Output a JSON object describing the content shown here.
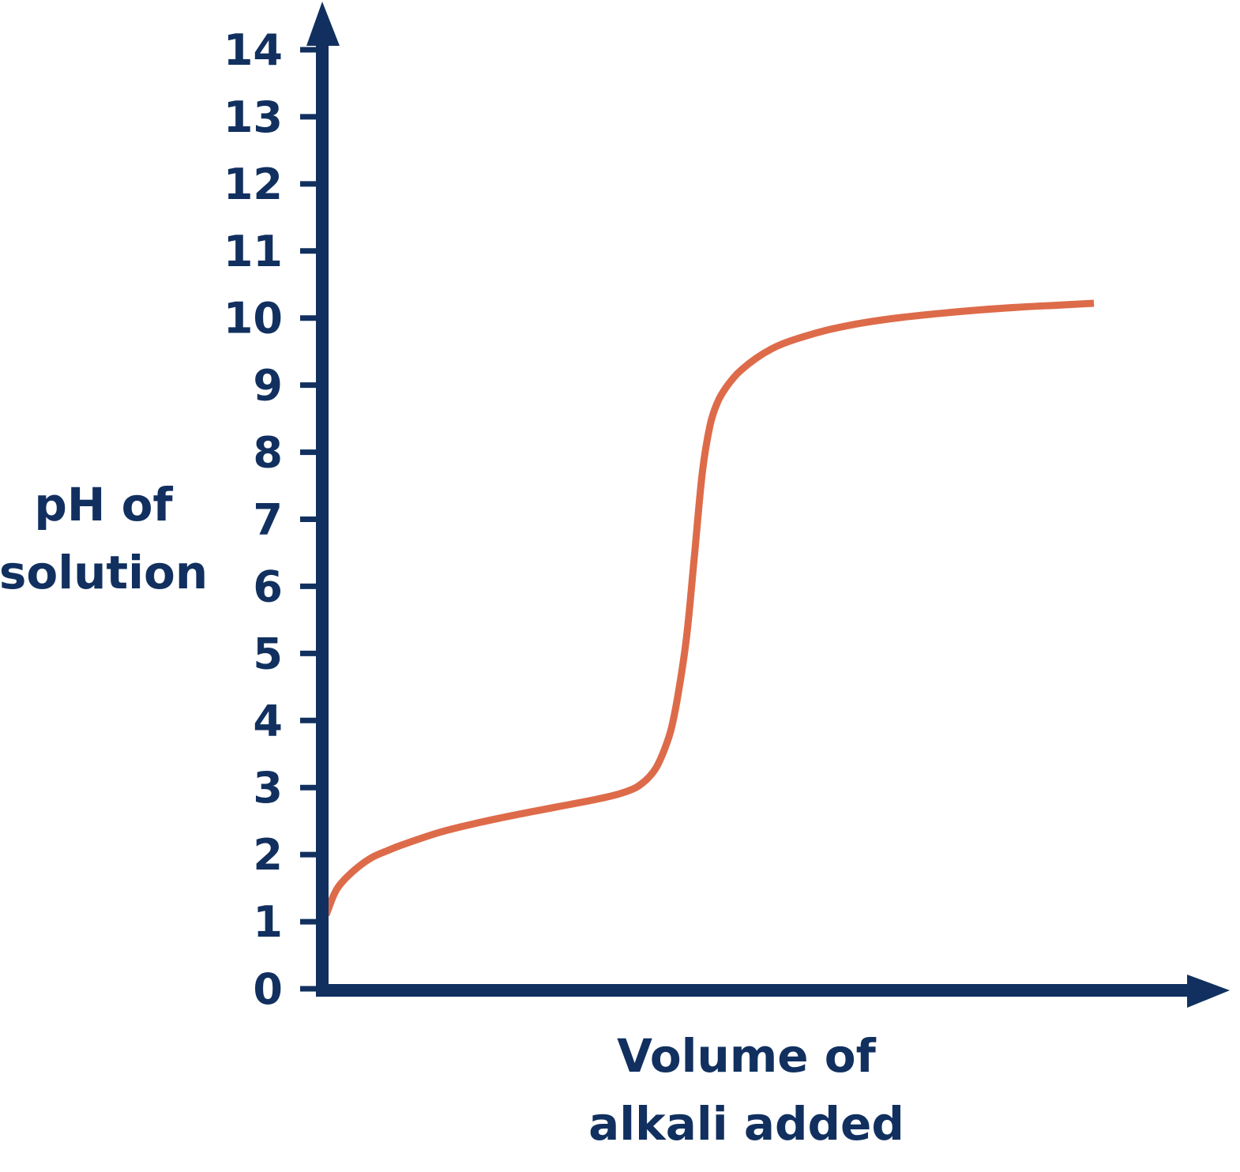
{
  "chart_data": {
    "type": "line",
    "ylabel_lines": [
      "pH of",
      "solution"
    ],
    "xlabel_lines": [
      "Volume of",
      "alkali added"
    ],
    "ylim": [
      0,
      14
    ],
    "yticks": [
      "0",
      "1",
      "2",
      "3",
      "4",
      "5",
      "6",
      "7",
      "8",
      "9",
      "10",
      "11",
      "12",
      "13",
      "14"
    ],
    "xlim": [
      0,
      100
    ],
    "x_ticks_shown": false,
    "grid": false,
    "legend": "none",
    "series": [
      {
        "x": [
          0,
          1,
          2,
          4,
          6,
          8,
          10,
          15,
          20,
          25,
          30,
          35,
          38,
          40,
          41,
          42,
          43,
          44,
          45,
          46,
          47,
          48,
          49,
          50,
          51,
          52,
          53,
          54,
          56,
          58,
          60,
          63,
          66,
          70,
          75,
          80,
          85,
          90,
          95,
          100
        ],
        "y": [
          1.1,
          1.4,
          1.58,
          1.8,
          1.96,
          2.06,
          2.15,
          2.34,
          2.48,
          2.6,
          2.71,
          2.82,
          2.9,
          2.98,
          3.05,
          3.15,
          3.3,
          3.55,
          3.9,
          4.5,
          5.3,
          6.5,
          7.7,
          8.4,
          8.75,
          8.95,
          9.1,
          9.22,
          9.4,
          9.54,
          9.64,
          9.75,
          9.84,
          9.93,
          10.01,
          10.07,
          10.12,
          10.16,
          10.19,
          10.22
        ]
      }
    ],
    "colors": {
      "axis": "#11305f",
      "line": "#dd6b4a",
      "text": "#11305f"
    }
  }
}
